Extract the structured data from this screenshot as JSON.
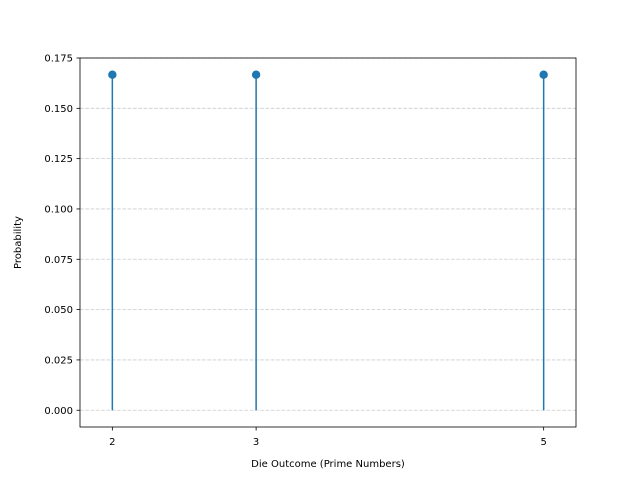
{
  "chart_data": {
    "type": "stem",
    "title": "",
    "xlabel": "Die Outcome (Prime Numbers)",
    "ylabel": "Probability",
    "xlim": [
      1.775,
      5.225
    ],
    "ylim": [
      -0.00833,
      0.175
    ],
    "xticks": [
      2,
      3,
      5
    ],
    "yticks": [
      0.0,
      0.025,
      0.05,
      0.075,
      0.1,
      0.125,
      0.15,
      0.175
    ],
    "ytick_labels": [
      "0.000",
      "0.025",
      "0.050",
      "0.075",
      "0.100",
      "0.125",
      "0.150",
      "0.175"
    ],
    "grid": "y-dashed",
    "series": [
      {
        "x": [
          2,
          3,
          5
        ],
        "values": [
          0.1667,
          0.1667,
          0.1667
        ]
      }
    ]
  },
  "colors": {
    "stem": "#1f77b4",
    "grid": "#cccccc",
    "axes": "#000000"
  }
}
